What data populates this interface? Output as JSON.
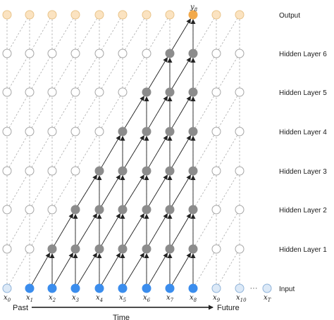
{
  "layers": [
    {
      "label": "Input"
    },
    {
      "label": "Hidden Layer 1"
    },
    {
      "label": "Hidden Layer 2"
    },
    {
      "label": "Hidden Layer 3"
    },
    {
      "label": "Hidden Layer 4"
    },
    {
      "label": "Hidden Layer 5"
    },
    {
      "label": "Hidden Layer 6"
    },
    {
      "label": "Output"
    }
  ],
  "inputs": [
    {
      "symbol": "x",
      "sub": "0"
    },
    {
      "symbol": "x",
      "sub": "1"
    },
    {
      "symbol": "x",
      "sub": "2"
    },
    {
      "symbol": "x",
      "sub": "3"
    },
    {
      "symbol": "x",
      "sub": "4"
    },
    {
      "symbol": "x",
      "sub": "5"
    },
    {
      "symbol": "x",
      "sub": "6"
    },
    {
      "symbol": "x",
      "sub": "7"
    },
    {
      "symbol": "x",
      "sub": "8"
    },
    {
      "symbol": "x",
      "sub": "9"
    },
    {
      "symbol": "x",
      "sub": "10"
    },
    {
      "symbol": "x",
      "sub": "T"
    }
  ],
  "ellipsis": "···",
  "output_label": {
    "symbol": "y",
    "sub": "8"
  },
  "axis": {
    "past": "Past",
    "future": "Future",
    "time": "Time"
  },
  "colors": {
    "input_active": "#3b8ded",
    "input_inactive": "#dce9f7",
    "input_inactive_stroke": "#8fb3d9",
    "hidden_active": "#8c8c8c",
    "hidden_inactive": "#ffffff",
    "hidden_stroke": "#a6a6a6",
    "output_active": "#f2a94a",
    "output_inactive": "#fbe3c1",
    "output_inactive_stroke": "#e9c48a",
    "edge_active": "#222222",
    "edge_dashed": "#aaaaaa"
  },
  "receptive_field": {
    "active_inputs": [
      1,
      2,
      3,
      4,
      5,
      6,
      7,
      8
    ],
    "output_timestep": 8
  }
}
